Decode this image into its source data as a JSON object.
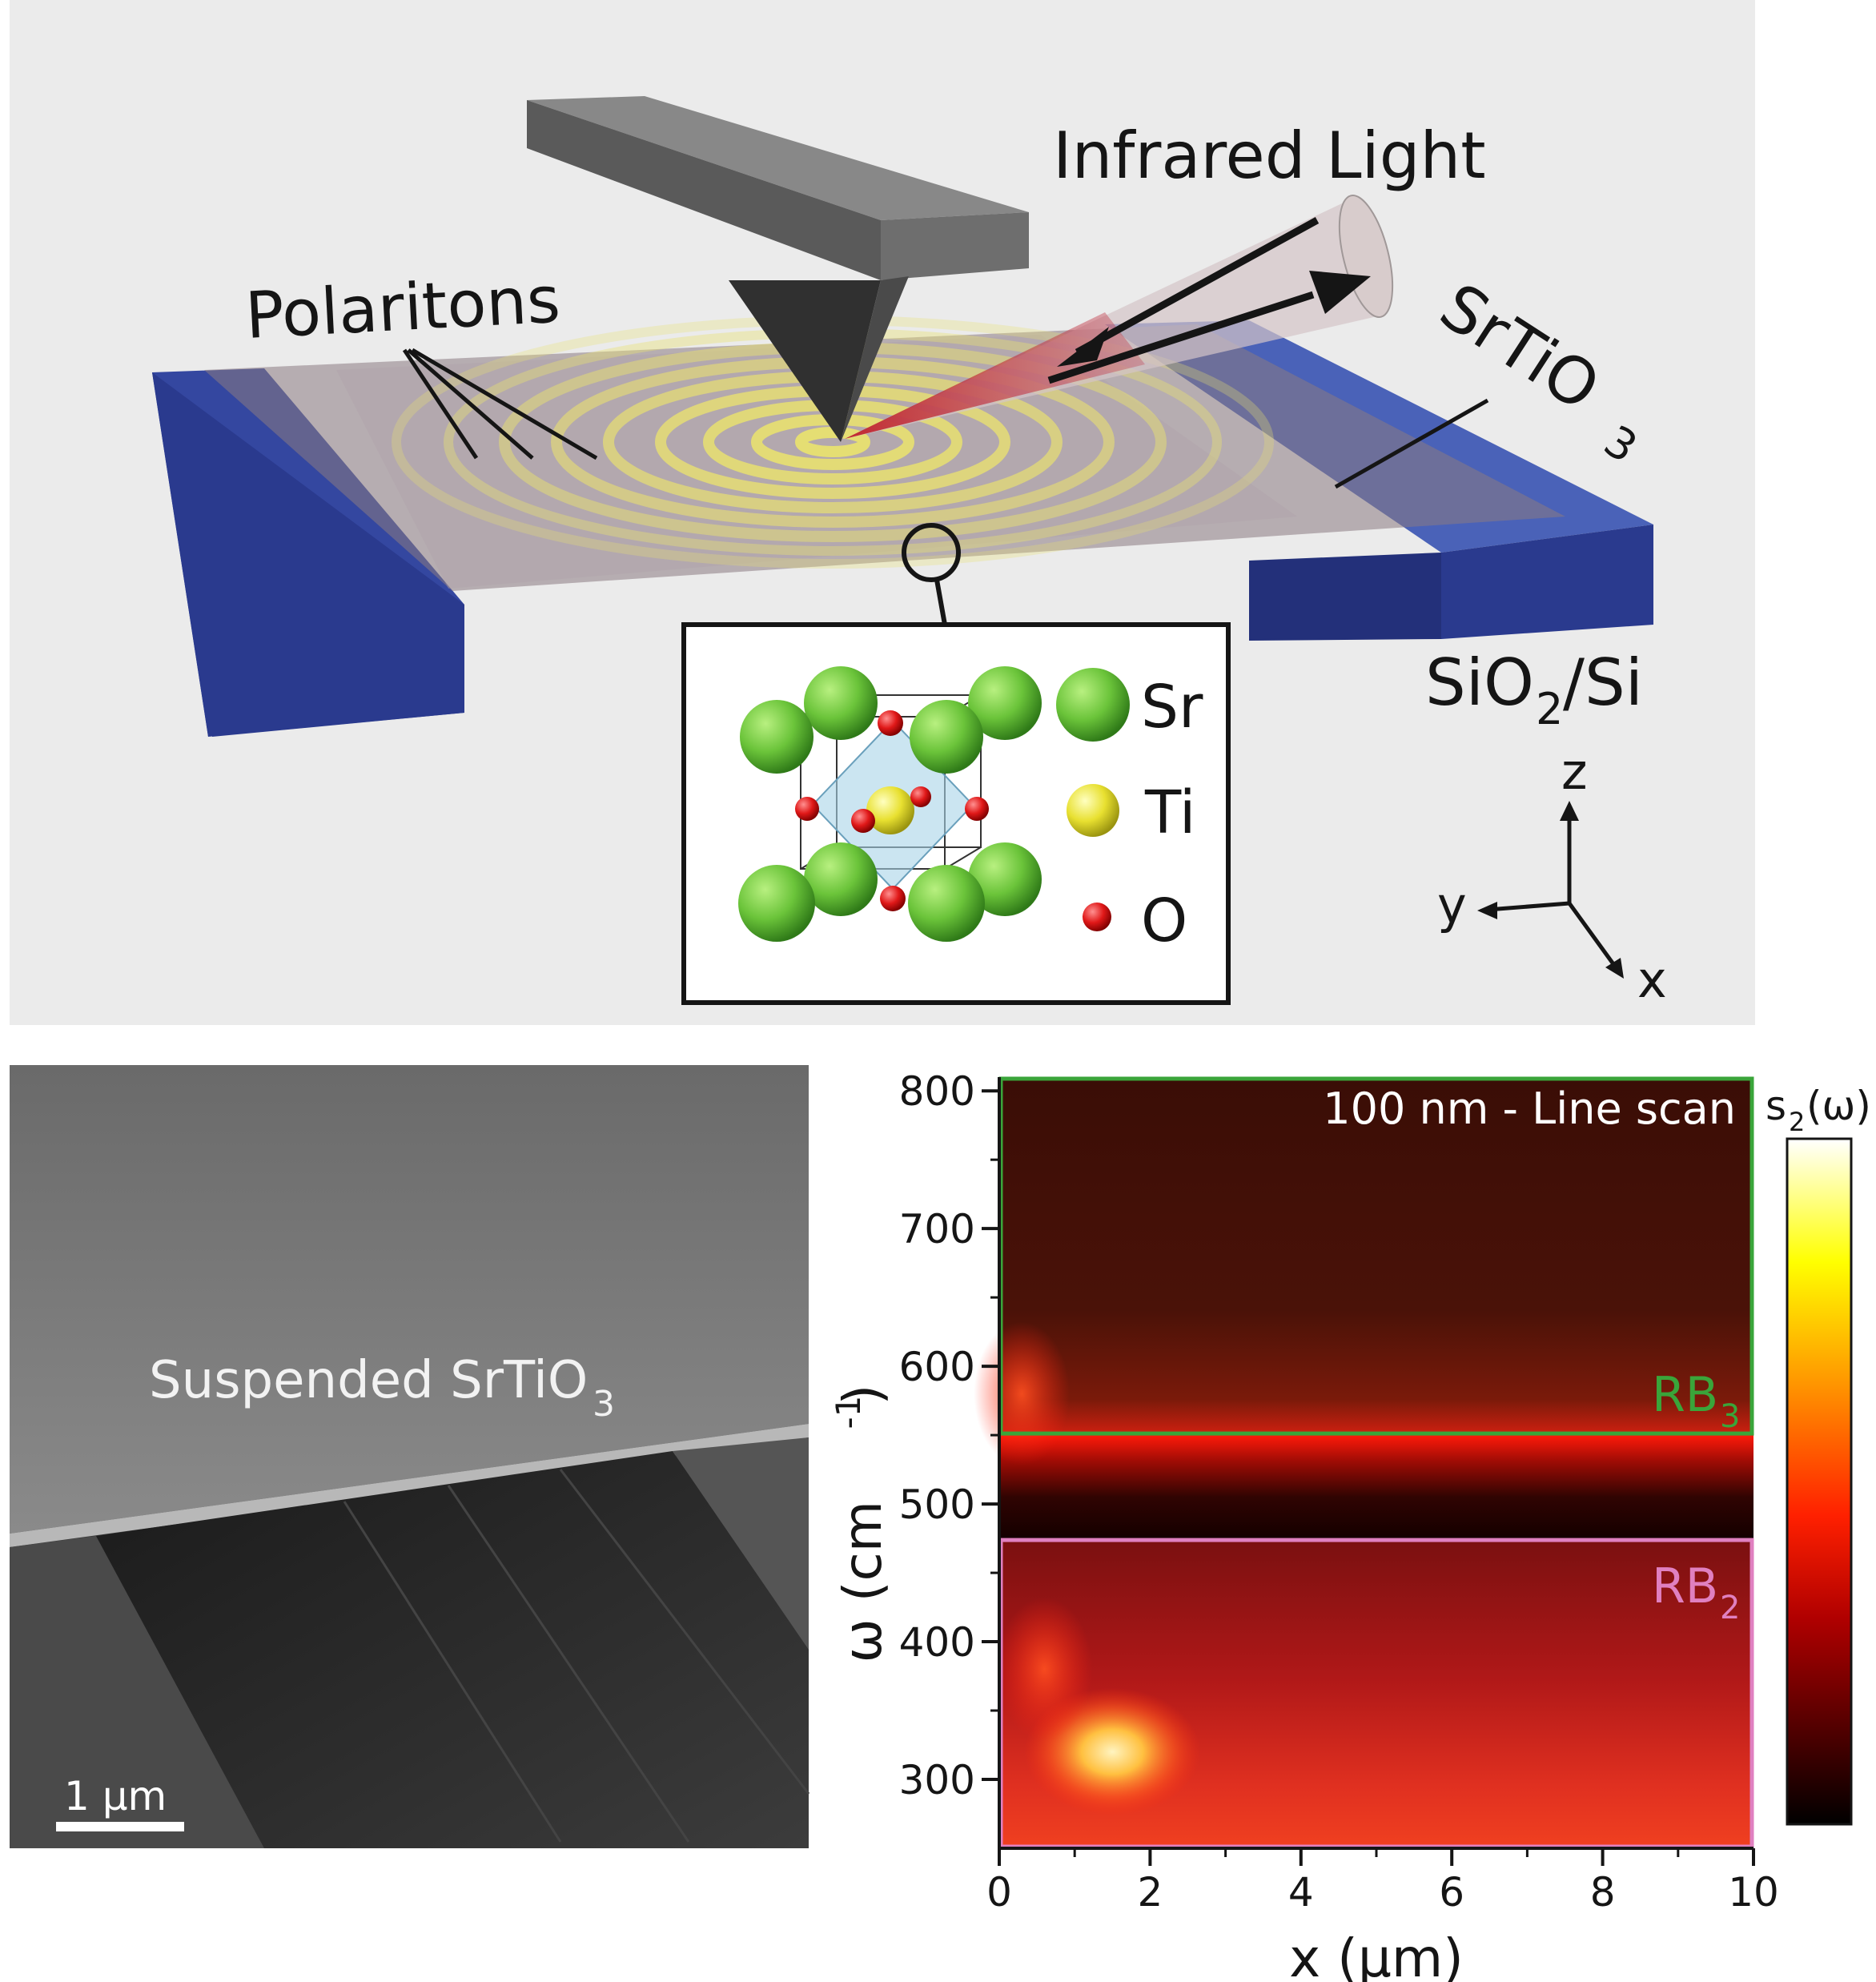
{
  "schematic": {
    "label_infrared": "Infrared Light",
    "label_polaritons": "Polaritons",
    "label_srtio3_main": "SrTiO",
    "label_srtio3_sub": "3",
    "label_substrate_a": "SiO",
    "label_substrate_sub": "2",
    "label_substrate_b": "/Si",
    "legend": {
      "sr": "Sr",
      "ti": "Ti",
      "o": "O"
    },
    "axes": {
      "z": "z",
      "y": "y",
      "x": "x"
    },
    "colors": {
      "substrate": "#3d55a8",
      "sr": "#6bc43a",
      "ti": "#e8e030",
      "o": "#e01818",
      "rings": "#e8e070"
    }
  },
  "sem": {
    "label_main": "Suspended SrTiO",
    "label_sub": "3",
    "scale_bar": "1 μm"
  },
  "chart_data": {
    "type": "heatmap",
    "title": "100 nm - Line scan",
    "xlabel": "x (μm)",
    "ylabel_main": "ω (cm",
    "ylabel_sup": "-1",
    "ylabel_end": ")",
    "xlim": [
      0,
      10
    ],
    "ylim": [
      250,
      810
    ],
    "x_ticks": [
      0,
      2,
      4,
      6,
      8,
      10
    ],
    "y_ticks": [
      300,
      400,
      500,
      600,
      700,
      800
    ],
    "colorbar_label_main": "s",
    "colorbar_label_sub": "2",
    "colorbar_label_end": "(ω)",
    "colormap": "hot",
    "regions": [
      {
        "name_main": "RB",
        "name_sub": "3",
        "y_range": [
          550,
          810
        ],
        "color": "#3aa53a"
      },
      {
        "name_main": "RB",
        "name_sub": "2",
        "y_range": [
          250,
          475
        ],
        "color": "#e080c0"
      }
    ],
    "features": [
      {
        "band": "RB3",
        "edge_omega": 550,
        "peak_near_x": 0.3
      },
      {
        "band": "RB2",
        "peak_omega": 300,
        "peak_x": 1.5
      }
    ]
  }
}
